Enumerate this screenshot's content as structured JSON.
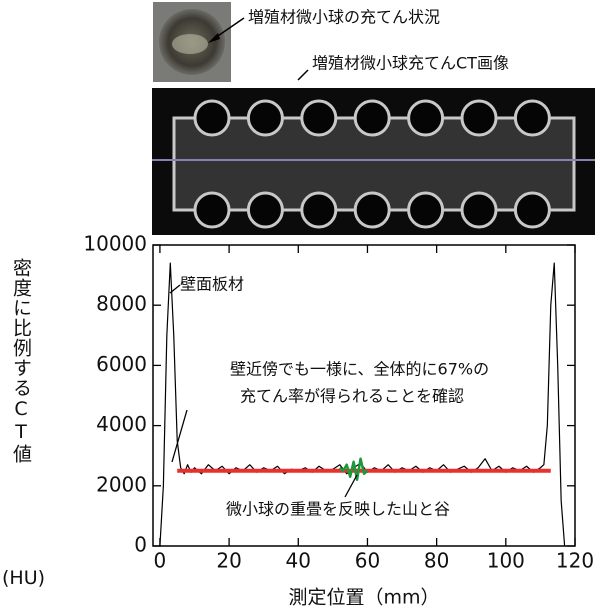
{
  "figure": {
    "photo_label": "増殖材微小球の充てん状況",
    "ct_label": "増殖材微小球充てんCT画像"
  },
  "chart_data": {
    "type": "line",
    "xlabel": "測定位置（mm）",
    "ylabel": "密度に比例するCT値",
    "ylabel_unit": "(HU)",
    "xlim": [
      -2,
      120
    ],
    "ylim": [
      0,
      10000
    ],
    "xticks": [
      0,
      20,
      40,
      60,
      80,
      100,
      120
    ],
    "yticks": [
      0,
      2000,
      4000,
      6000,
      8000,
      10000
    ],
    "annotations": [
      "壁面板材",
      "壁近傍でも一様に、全体的に67%の",
      "充てん率が得られることを確認",
      "微小球の重畳を反映した山と谷"
    ],
    "series": [
      {
        "color": "#000000",
        "x": [
          0,
          1,
          2,
          3,
          4,
          5,
          6,
          7,
          8,
          9,
          10,
          12,
          14,
          16,
          18,
          20,
          22,
          24,
          26,
          28,
          30,
          32,
          34,
          36,
          38,
          40,
          42,
          44,
          46,
          48,
          50,
          52,
          54,
          56,
          58,
          60,
          62,
          64,
          66,
          68,
          70,
          72,
          74,
          76,
          78,
          80,
          82,
          84,
          86,
          88,
          90,
          92,
          94,
          96,
          98,
          100,
          102,
          104,
          106,
          108,
          110,
          111,
          112,
          113,
          114,
          115,
          116,
          117
        ],
        "values": [
          0,
          2000,
          7000,
          9400,
          7000,
          3500,
          2600,
          2400,
          2700,
          2450,
          2600,
          2400,
          2700,
          2500,
          2650,
          2400,
          2600,
          2500,
          2700,
          2450,
          2600,
          2500,
          2650,
          2400,
          2550,
          2500,
          2600,
          2450,
          2650,
          2500,
          2550,
          2700,
          2400,
          2600,
          2750,
          2450,
          2600,
          2500,
          2700,
          2450,
          2600,
          2500,
          2650,
          2450,
          2600,
          2500,
          2700,
          2450,
          2550,
          2650,
          2450,
          2600,
          2900,
          2500,
          2650,
          2450,
          2600,
          2500,
          2650,
          2450,
          2600,
          2700,
          4000,
          8000,
          9400,
          6000,
          1500,
          0
        ]
      },
      {
        "color": "#e8302f",
        "x": [
          5,
          113
        ],
        "values": [
          2500,
          2500
        ]
      },
      {
        "color": "#1a9a3a",
        "x": [
          52,
          53,
          54,
          55,
          56,
          57,
          58,
          59,
          60
        ],
        "values": [
          2600,
          2500,
          2700,
          2300,
          2800,
          2200,
          2900,
          2400,
          2500
        ]
      }
    ]
  }
}
